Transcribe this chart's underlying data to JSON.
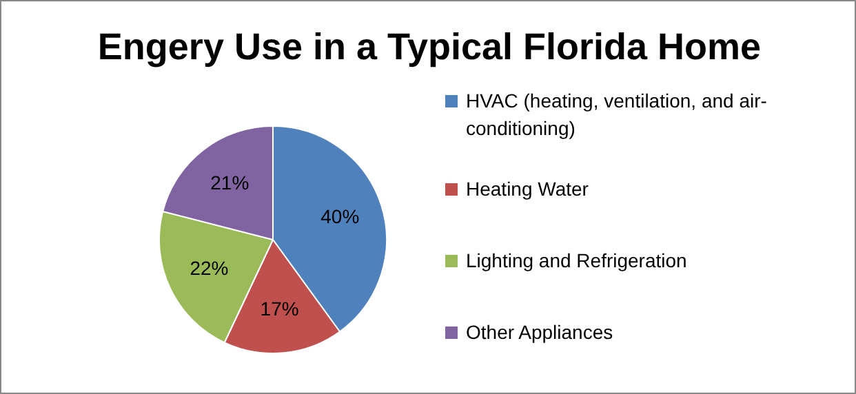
{
  "chart_data": {
    "type": "pie",
    "title": "Engery Use in a Typical Florida Home",
    "categories": [
      "HVAC (heating, ventilation, and air-conditioning)",
      "Heating Water",
      "Lighting and Refrigeration",
      "Other Appliances"
    ],
    "values": [
      40,
      17,
      22,
      21
    ],
    "colors": [
      "#4f81bd",
      "#c0504d",
      "#9bbb59",
      "#8064a2"
    ],
    "value_labels": [
      "40%",
      "17%",
      "22%",
      "21%"
    ],
    "legend": "right"
  }
}
